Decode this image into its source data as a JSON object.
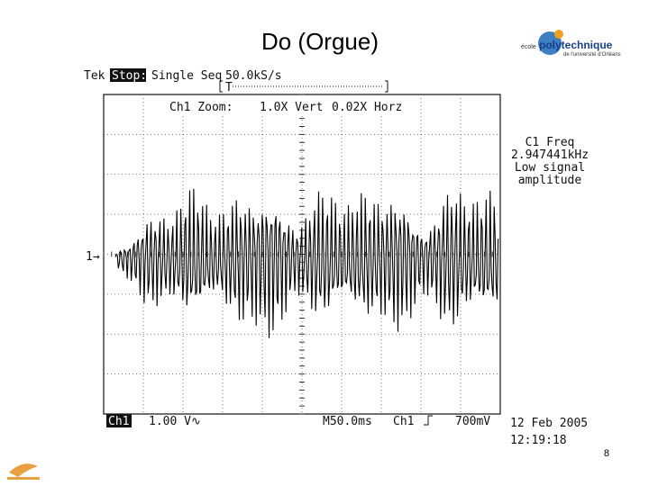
{
  "slide": {
    "title": "Do (Orgue)",
    "page_number": "8",
    "logo": {
      "prefix": "école",
      "name": "polytechnique",
      "subtitle": "de l'université d'Orléans"
    }
  },
  "scope": {
    "header": {
      "brand": "Tek",
      "state": "Stop:",
      "mode": "Single Seq",
      "sample_rate": "50.0kS/s"
    },
    "zoom": {
      "label": "Ch1 Zoom:",
      "vert": "1.0X Vert",
      "horz": "0.02X Horz"
    },
    "measurement": {
      "label": "C1 Freq",
      "value": "2.947441kHz",
      "note_1": "Low signal",
      "note_2": "amplitude"
    },
    "markers": {
      "trigger_pos": "T",
      "channel": "1→"
    },
    "footer": {
      "channel": "Ch1",
      "scale": "1.00 V∿",
      "timebase": "M50.0ms",
      "trigger_source": "Ch1",
      "trigger_level": "700mV",
      "date": "12 Feb 2005",
      "time": "12:19:18"
    }
  }
}
